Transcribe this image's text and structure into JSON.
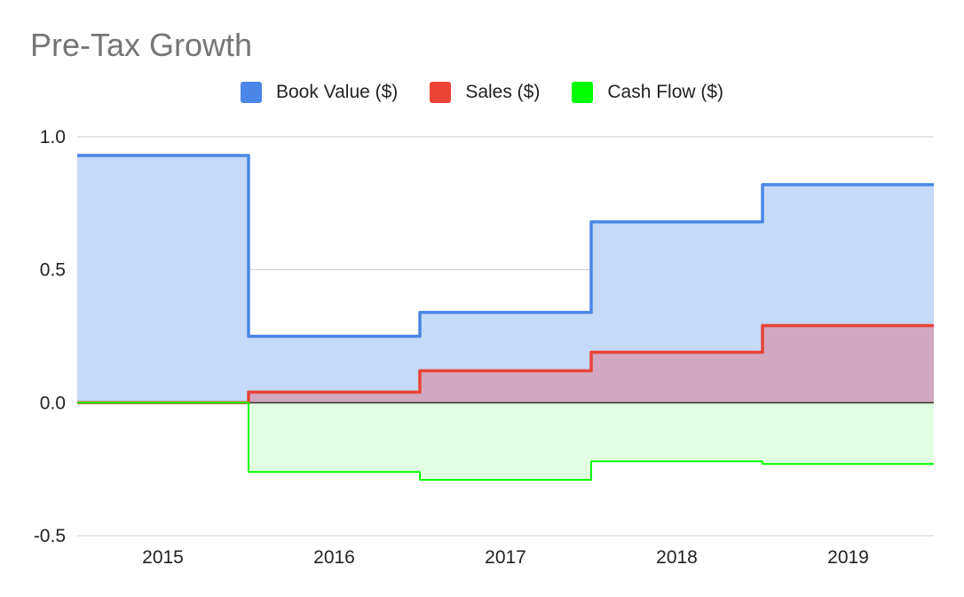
{
  "chart_data": {
    "type": "area",
    "step": true,
    "title": "Pre-Tax Growth",
    "categories": [
      "2015",
      "2016",
      "2017",
      "2018",
      "2019"
    ],
    "series": [
      {
        "name": "Book Value ($)",
        "color": "#4a86e8",
        "fill": "#c5d9f8",
        "values": [
          0.93,
          0.25,
          0.34,
          0.68,
          0.82
        ]
      },
      {
        "name": "Sales ($)",
        "color": "#ea4335",
        "fill": "#d1a8c0",
        "values": [
          0.0,
          0.04,
          0.12,
          0.19,
          0.29
        ]
      },
      {
        "name": "Cash Flow ($)",
        "color": "#00ff00",
        "fill": "#e1ffe1",
        "values": [
          0.0,
          -0.26,
          -0.29,
          -0.22,
          -0.23
        ]
      }
    ],
    "ylim": [
      -0.5,
      1.0
    ],
    "yticks": [
      "1.0",
      "0.5",
      "0.0",
      "-0.5"
    ],
    "ytick_values": [
      1.0,
      0.5,
      0.0,
      -0.5
    ],
    "grid": true,
    "legend_position": "top"
  }
}
